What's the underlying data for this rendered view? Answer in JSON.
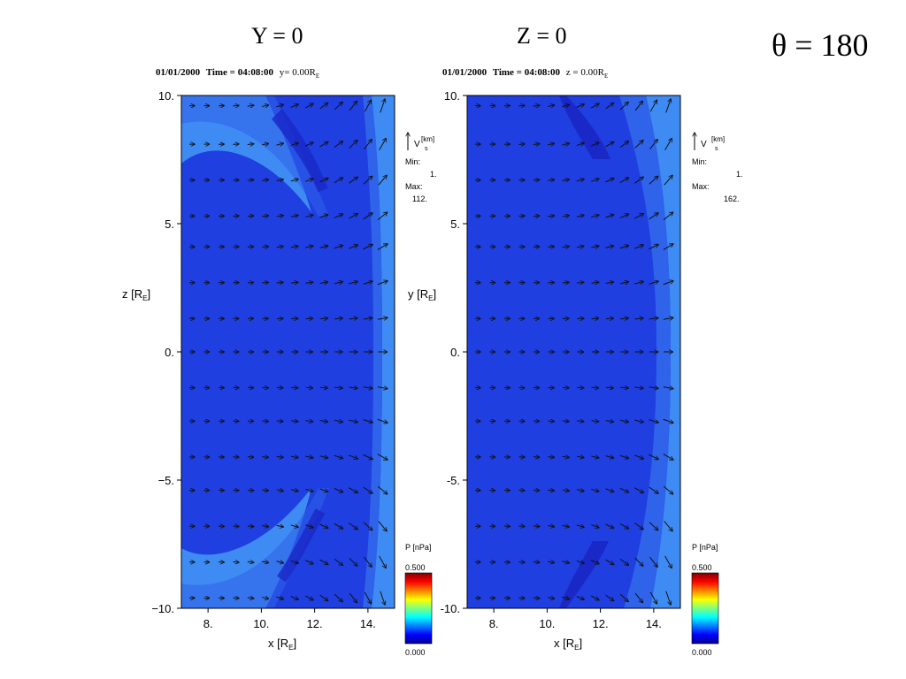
{
  "slide": {
    "left_title": "Y = 0",
    "right_title": "Z = 0",
    "angle_label": "θ = 180"
  },
  "colors": {
    "field": "#1f3fe0",
    "field_dark": "#1a28c8",
    "light": "#3f8bf4",
    "mid": "#2f63ea",
    "arrow": "#111111"
  },
  "chart_data": [
    {
      "type": "heatmap",
      "header": {
        "date": "01/01/2000",
        "time_label": "Time = 04:08:00",
        "slice": "y= 0.00R",
        "slice_sub": "E"
      },
      "xlabel": "x [R",
      "xlabel_sub": "E",
      "xlabel_end": "]",
      "ylabel": "z [R",
      "ylabel_sub": "E",
      "ylabel_end": "]",
      "xlim": [
        7,
        15
      ],
      "ylim": [
        -10,
        10
      ],
      "x_ticks": [
        8,
        10,
        12,
        14
      ],
      "x_tick_labels": [
        "8.",
        "10.",
        "12.",
        "14."
      ],
      "y_ticks": [
        10,
        5,
        0,
        -5,
        -10
      ],
      "y_tick_labels": [
        "10.",
        "5.",
        "0.",
        "−5.",
        "−10."
      ],
      "vector_legend": {
        "var": "V",
        "unit_top": "km",
        "unit_bottom": "s",
        "min_label": "Min:",
        "min": "1.",
        "max_label": "Max:",
        "max": "112."
      },
      "colorbar": {
        "label": "P [nPa]",
        "max": "0.500",
        "min": "0.000"
      },
      "arrows_rows": [
        9.6,
        8.1,
        6.7,
        5.3,
        4.1,
        2.7,
        1.3,
        0.0,
        -1.4,
        -2.7,
        -4.1,
        -5.4,
        -6.8,
        -8.2,
        -9.6
      ],
      "arrows_cols": [
        7.4,
        7.95,
        8.5,
        9.05,
        9.6,
        10.15,
        10.7,
        11.25,
        11.8,
        12.35,
        12.9,
        13.45,
        14.0,
        14.55
      ]
    },
    {
      "type": "heatmap",
      "header": {
        "date": "01/01/2000",
        "time_label": "Time = 04:08:00",
        "slice": "z = 0.00R",
        "slice_sub": "E"
      },
      "xlabel": "x [R",
      "xlabel_sub": "E",
      "xlabel_end": "]",
      "ylabel": "y [R",
      "ylabel_sub": "E",
      "ylabel_end": "]",
      "xlim": [
        7,
        15
      ],
      "ylim": [
        -10,
        10
      ],
      "x_ticks": [
        8,
        10,
        12,
        14
      ],
      "x_tick_labels": [
        "8.",
        "10.",
        "12.",
        "14."
      ],
      "y_ticks": [
        10,
        5,
        0,
        -5,
        -10
      ],
      "y_tick_labels": [
        "10.",
        "5.",
        "0.",
        "-5.",
        "-10."
      ],
      "vector_legend": {
        "var": "V",
        "unit_top": "km",
        "unit_bottom": "s",
        "min_label": "Min:",
        "min": "1.",
        "max_label": "Max:",
        "max": "162."
      },
      "colorbar": {
        "label": "P [nPa]",
        "max": "0.500",
        "min": "0.000"
      },
      "arrows_rows": [
        9.6,
        8.1,
        6.7,
        5.3,
        4.1,
        2.7,
        1.3,
        0.0,
        -1.4,
        -2.7,
        -4.1,
        -5.4,
        -6.8,
        -8.2,
        -9.6
      ],
      "arrows_cols": [
        7.4,
        7.95,
        8.5,
        9.05,
        9.6,
        10.15,
        10.7,
        11.25,
        11.8,
        12.35,
        12.9,
        13.45,
        14.0,
        14.55
      ]
    }
  ]
}
